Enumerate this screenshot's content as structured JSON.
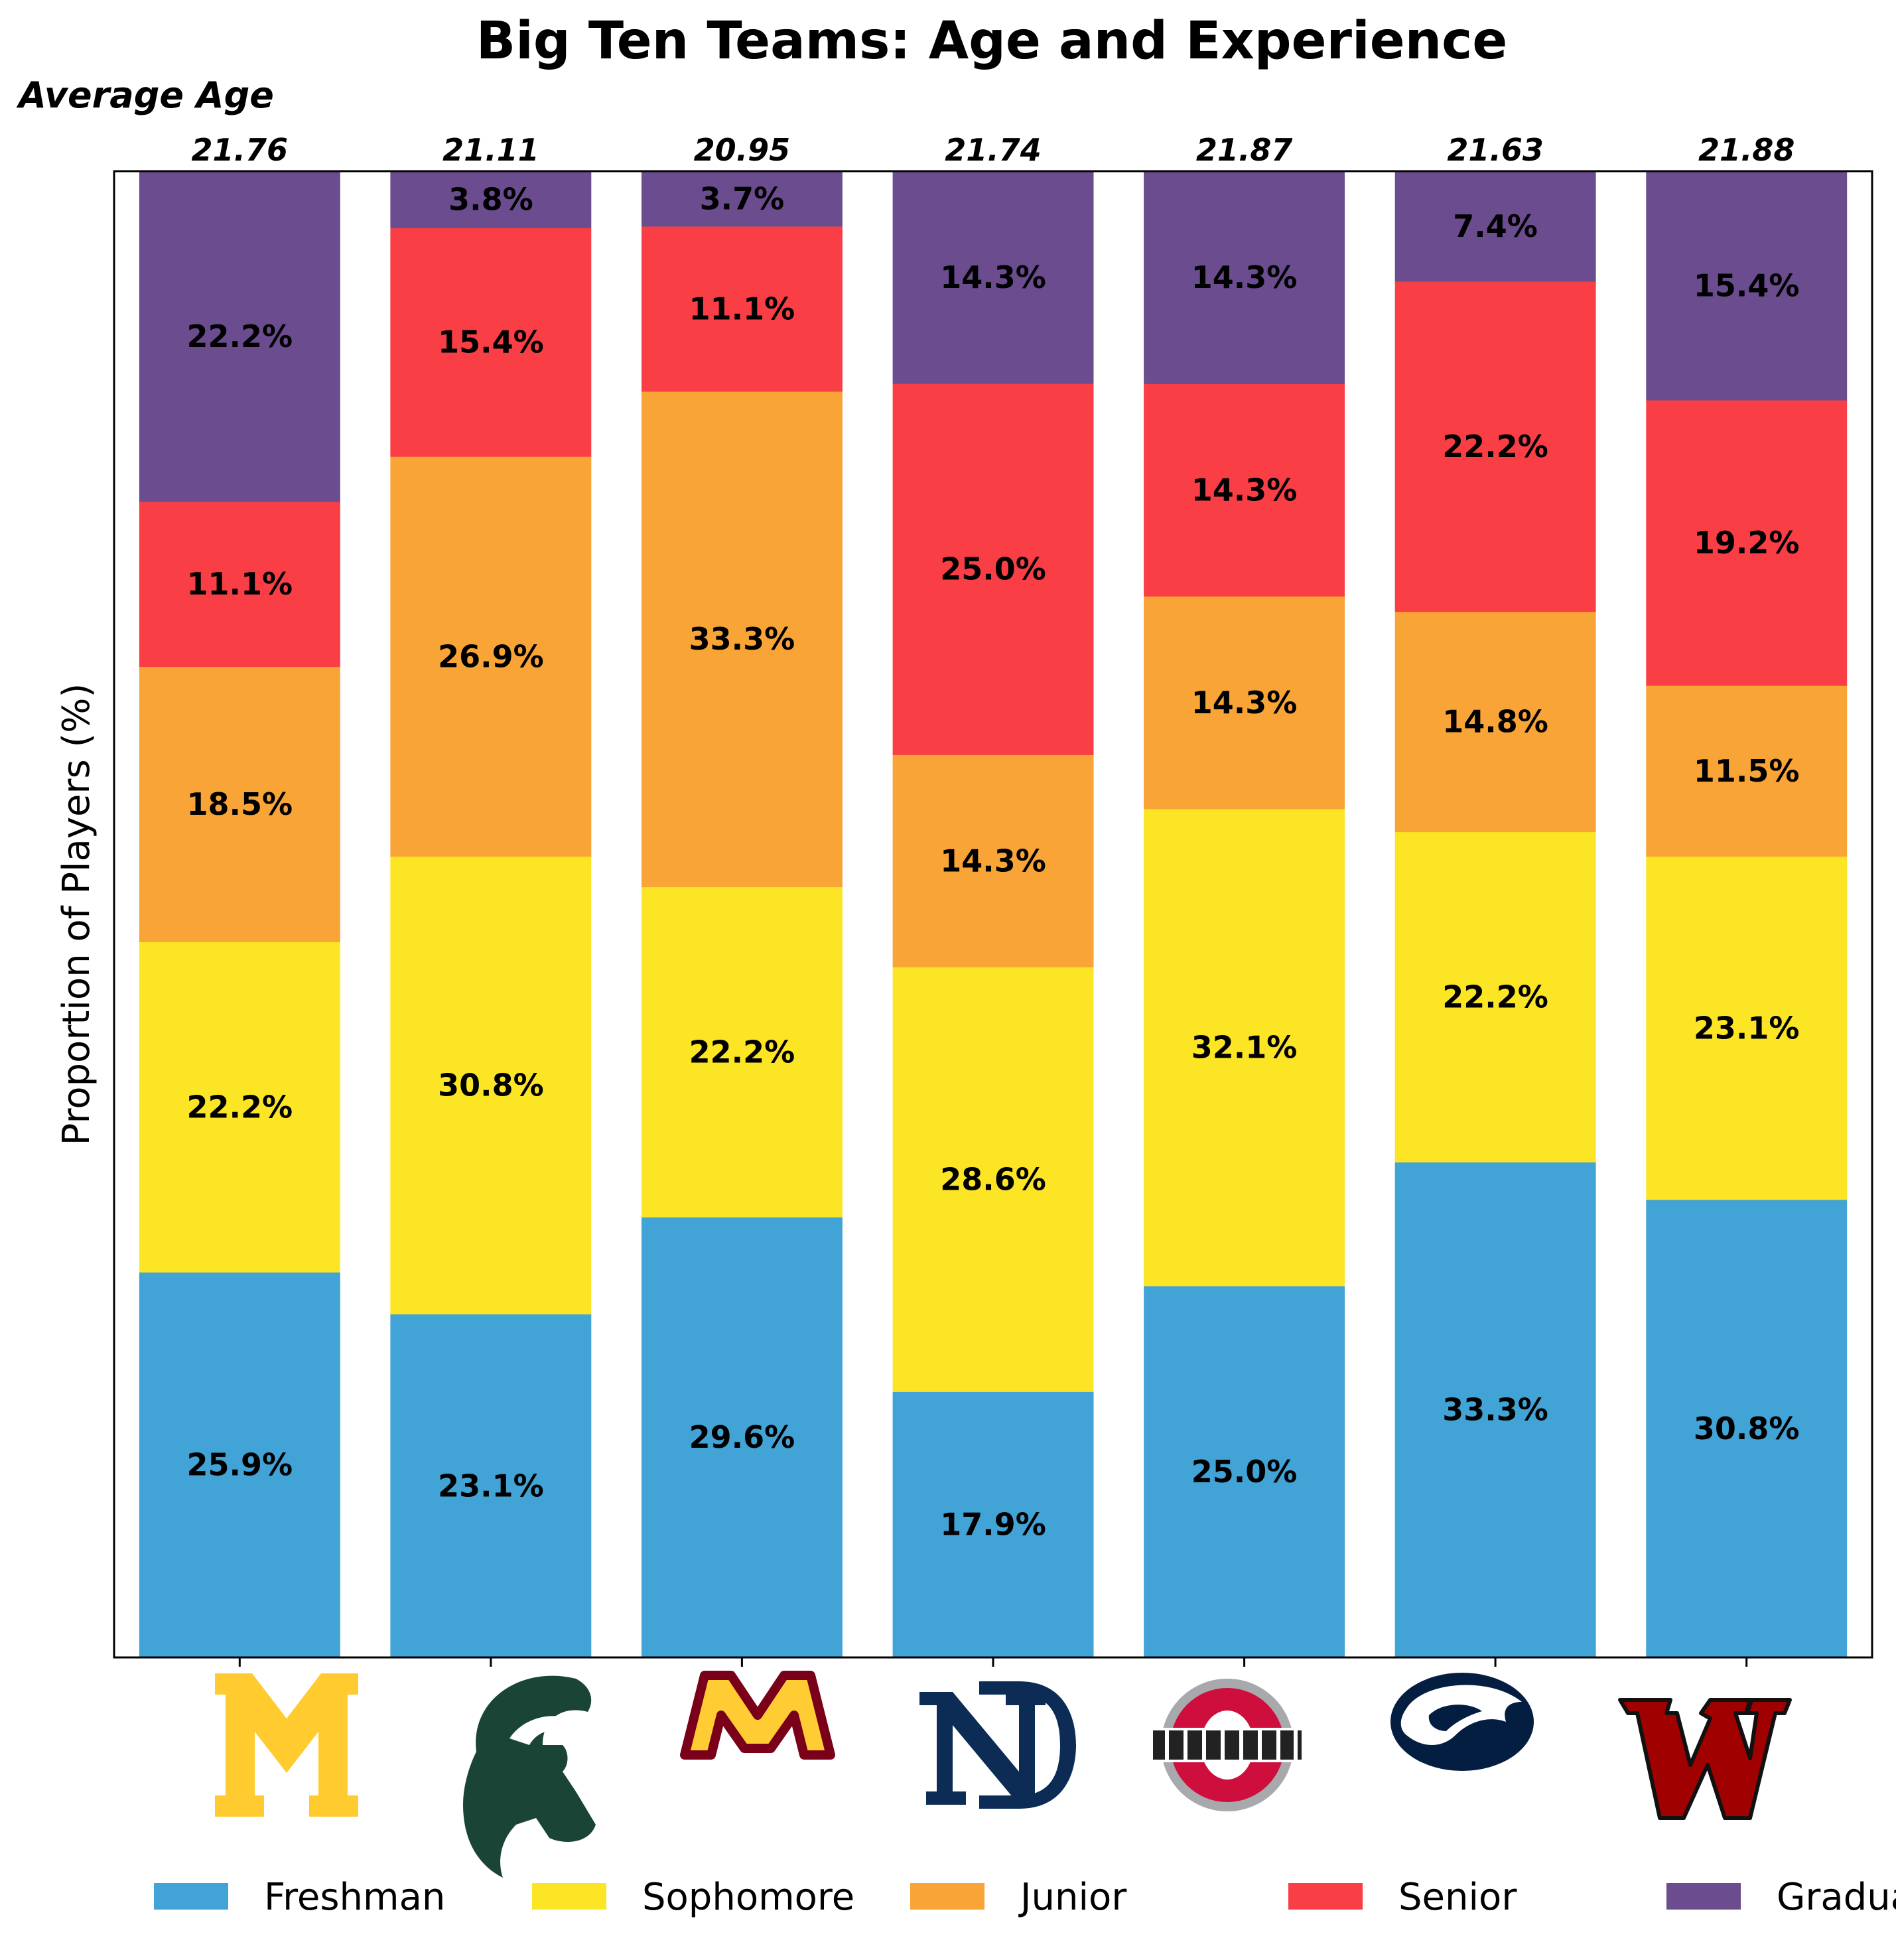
{
  "chart_data": {
    "type": "bar",
    "stacked": true,
    "normalized": true,
    "title": "Big Ten Teams: Age and Experience",
    "ylabel": "Proportion of Players (%)",
    "xlabel": "",
    "ylim": [
      0,
      100
    ],
    "secondary_header": "Average Age",
    "categories": [
      "michigan-logo",
      "michigan-state-logo",
      "minnesota-logo",
      "notre-dame-logo",
      "ohio-state-logo",
      "penn-state-logo",
      "wisconsin-logo"
    ],
    "average_age": [
      "21.76",
      "21.11",
      "20.95",
      "21.74",
      "21.87",
      "21.63",
      "21.88"
    ],
    "series": [
      {
        "name": "Freshman",
        "color": "#42a3d6",
        "values": [
          25.9,
          23.1,
          29.6,
          17.9,
          25.0,
          33.3,
          30.8
        ]
      },
      {
        "name": "Sophomore",
        "color": "#fce524",
        "values": [
          22.2,
          30.8,
          22.2,
          28.6,
          32.1,
          22.2,
          23.1
        ]
      },
      {
        "name": "Junior",
        "color": "#f9a436",
        "values": [
          18.5,
          26.9,
          33.3,
          14.3,
          14.3,
          14.8,
          11.5
        ]
      },
      {
        "name": "Senior",
        "color": "#f93f45",
        "values": [
          11.1,
          15.4,
          11.1,
          25.0,
          14.3,
          22.2,
          19.2
        ]
      },
      {
        "name": "Graduate",
        "color": "#6a4c8f",
        "values": [
          22.2,
          3.8,
          3.7,
          14.3,
          14.3,
          7.4,
          15.4
        ]
      }
    ],
    "legend_position": "bottom",
    "grid": false,
    "logo_colors": {
      "michigan": "#ffcb2e",
      "michigan_state": "#1a4536",
      "minnesota_maroon": "#7a0019",
      "minnesota_gold": "#ffcc33",
      "notre_dame": "#0c2c56",
      "ohio_state_red": "#ce0f3d",
      "ohio_state_gray": "#a7a9ac",
      "penn_state": "#041e42",
      "wisconsin": "#a00000"
    }
  }
}
